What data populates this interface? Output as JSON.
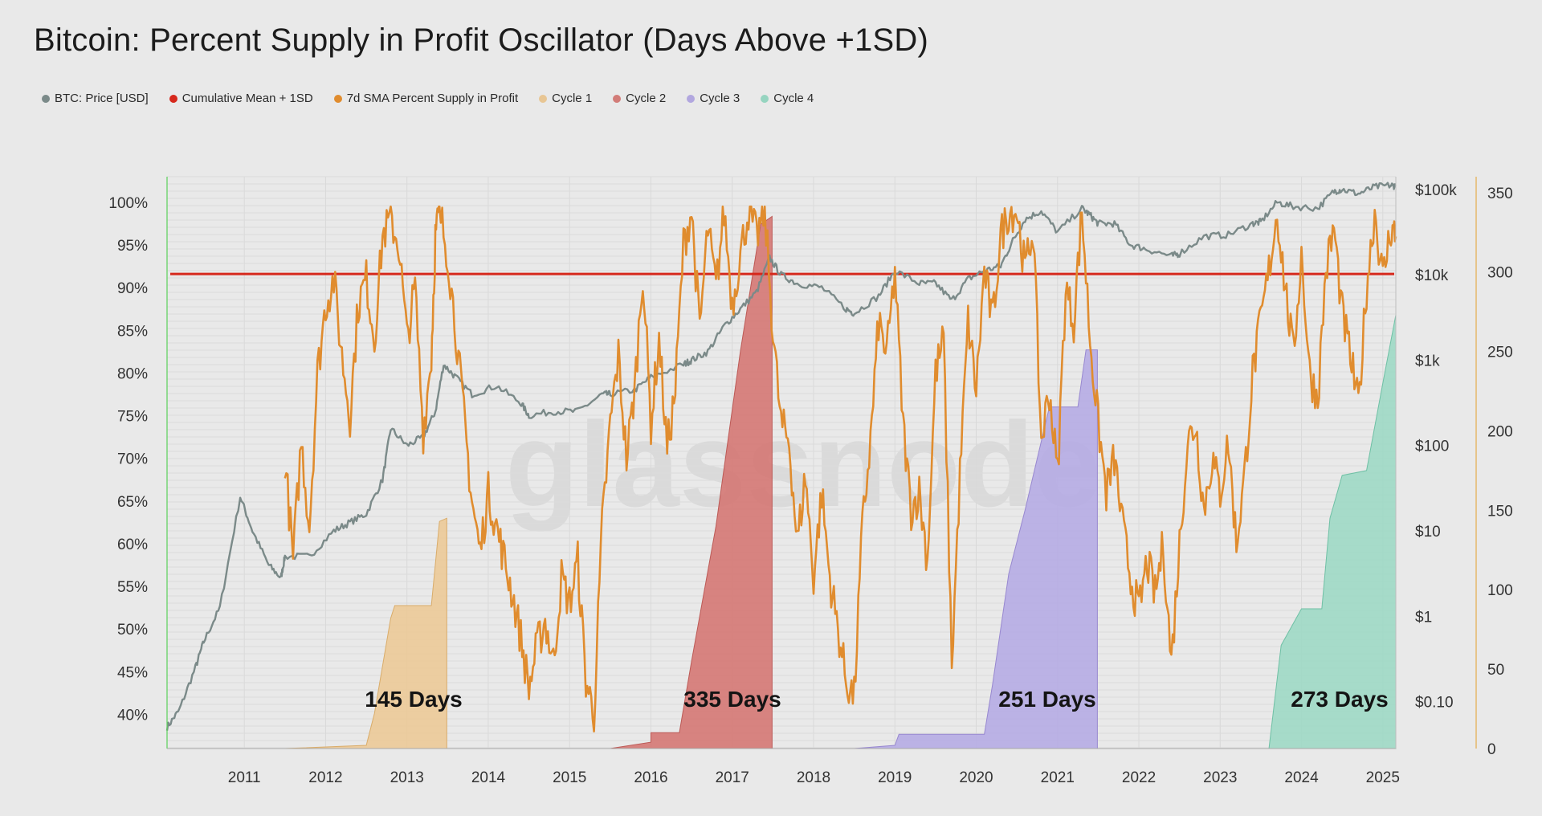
{
  "title": "Bitcoin: Percent Supply in Profit Oscillator (Days Above +1SD)",
  "watermark": "glassnode",
  "legend": [
    {
      "label": "BTC: Price [USD]",
      "color": "#7b8a89",
      "icon": "dot-icon"
    },
    {
      "label": "Cumulative Mean + 1SD",
      "color": "#d6281c",
      "icon": "dot-icon"
    },
    {
      "label": "7d SMA Percent Supply in Profit",
      "color": "#e08c2e",
      "icon": "dot-icon"
    },
    {
      "label": "Cycle 1",
      "color": "#e8c694",
      "icon": "dot-icon"
    },
    {
      "label": "Cycle 2",
      "color": "#d27c78",
      "icon": "dot-icon"
    },
    {
      "label": "Cycle 3",
      "color": "#b2a7df",
      "icon": "dot-icon"
    },
    {
      "label": "Cycle 4",
      "color": "#96d4c0",
      "icon": "dot-icon"
    }
  ],
  "chart_data": {
    "type": "line",
    "title": "Bitcoin: Percent Supply in Profit Oscillator (Days Above +1SD)",
    "x_range": [
      2010.55,
      2025.66
    ],
    "x_ticks": [
      "2011",
      "2012",
      "2013",
      "2014",
      "2015",
      "2016",
      "2017",
      "2018",
      "2019",
      "2020",
      "2021",
      "2022",
      "2023",
      "2024",
      "2025"
    ],
    "y_left": {
      "range": [
        36,
        103
      ],
      "ticks": [
        "100%",
        "95%",
        "90%",
        "85%",
        "80%",
        "75%",
        "70%",
        "65%",
        "60%",
        "55%",
        "50%",
        "45%",
        "40%"
      ]
    },
    "y_right_price": {
      "scale": "log",
      "range_log10": [
        -1.55,
        5.15
      ],
      "ticks": [
        "$100k",
        "$10k",
        "$1k",
        "$100",
        "$10",
        "$1",
        "$0.10"
      ]
    },
    "y_right_days": {
      "range": [
        0,
        360
      ],
      "ticks": [
        "350",
        "300",
        "250",
        "200",
        "150",
        "100",
        "50",
        "0"
      ]
    },
    "threshold": {
      "name": "Cumulative Mean + 1SD",
      "value": 91.6
    },
    "series": [
      {
        "name": "7d SMA Percent Supply in Profit",
        "axis": "left",
        "points": [
          [
            2012.0,
            70
          ],
          [
            2012.1,
            58
          ],
          [
            2012.2,
            72
          ],
          [
            2012.3,
            62
          ],
          [
            2012.4,
            80
          ],
          [
            2012.5,
            88
          ],
          [
            2012.6,
            91
          ],
          [
            2012.7,
            82
          ],
          [
            2012.8,
            75
          ],
          [
            2012.9,
            88
          ],
          [
            2013.0,
            91
          ],
          [
            2013.1,
            84
          ],
          [
            2013.2,
            96
          ],
          [
            2013.3,
            98
          ],
          [
            2013.4,
            95
          ],
          [
            2013.5,
            84
          ],
          [
            2013.6,
            90
          ],
          [
            2013.7,
            73
          ],
          [
            2013.8,
            82
          ],
          [
            2013.85,
            96
          ],
          [
            2013.9,
            99
          ],
          [
            2014.0,
            94
          ],
          [
            2014.1,
            85
          ],
          [
            2014.2,
            75
          ],
          [
            2014.3,
            65
          ],
          [
            2014.4,
            59
          ],
          [
            2014.5,
            66
          ],
          [
            2014.6,
            62
          ],
          [
            2014.7,
            58
          ],
          [
            2014.8,
            54
          ],
          [
            2014.9,
            49
          ],
          [
            2015.0,
            43
          ],
          [
            2015.1,
            48
          ],
          [
            2015.2,
            51
          ],
          [
            2015.3,
            46
          ],
          [
            2015.4,
            56
          ],
          [
            2015.5,
            53
          ],
          [
            2015.6,
            58
          ],
          [
            2015.7,
            44
          ],
          [
            2015.8,
            40
          ],
          [
            2015.9,
            62
          ],
          [
            2016.0,
            74
          ],
          [
            2016.1,
            82
          ],
          [
            2016.2,
            70
          ],
          [
            2016.3,
            78
          ],
          [
            2016.4,
            92
          ],
          [
            2016.5,
            74
          ],
          [
            2016.6,
            84
          ],
          [
            2016.7,
            71
          ],
          [
            2016.8,
            78
          ],
          [
            2016.9,
            95
          ],
          [
            2017.0,
            99
          ],
          [
            2017.1,
            85
          ],
          [
            2017.2,
            97
          ],
          [
            2017.3,
            90
          ],
          [
            2017.4,
            99
          ],
          [
            2017.5,
            88
          ],
          [
            2017.6,
            94
          ],
          [
            2017.7,
            99
          ],
          [
            2017.8,
            96
          ],
          [
            2017.9,
            99
          ],
          [
            2018.0,
            85
          ],
          [
            2018.1,
            74
          ],
          [
            2018.2,
            72
          ],
          [
            2018.3,
            60
          ],
          [
            2018.4,
            68
          ],
          [
            2018.5,
            56
          ],
          [
            2018.6,
            66
          ],
          [
            2018.7,
            56
          ],
          [
            2018.8,
            50
          ],
          [
            2018.9,
            44
          ],
          [
            2019.0,
            42
          ],
          [
            2019.1,
            62
          ],
          [
            2019.2,
            72
          ],
          [
            2019.3,
            86
          ],
          [
            2019.4,
            82
          ],
          [
            2019.5,
            92
          ],
          [
            2019.6,
            74
          ],
          [
            2019.7,
            64
          ],
          [
            2019.8,
            66
          ],
          [
            2019.9,
            58
          ],
          [
            2020.0,
            80
          ],
          [
            2020.1,
            84
          ],
          [
            2020.2,
            46
          ],
          [
            2020.3,
            68
          ],
          [
            2020.4,
            86
          ],
          [
            2020.5,
            78
          ],
          [
            2020.6,
            92
          ],
          [
            2020.7,
            86
          ],
          [
            2020.8,
            96
          ],
          [
            2020.9,
            99
          ],
          [
            2021.0,
            99
          ],
          [
            2021.1,
            92
          ],
          [
            2021.2,
            97
          ],
          [
            2021.3,
            72
          ],
          [
            2021.4,
            78
          ],
          [
            2021.5,
            68
          ],
          [
            2021.6,
            90
          ],
          [
            2021.7,
            86
          ],
          [
            2021.8,
            99
          ],
          [
            2021.9,
            84
          ],
          [
            2022.0,
            74
          ],
          [
            2022.1,
            66
          ],
          [
            2022.2,
            70
          ],
          [
            2022.3,
            62
          ],
          [
            2022.4,
            56
          ],
          [
            2022.5,
            52
          ],
          [
            2022.6,
            58
          ],
          [
            2022.7,
            54
          ],
          [
            2022.8,
            60
          ],
          [
            2022.9,
            46
          ],
          [
            2023.0,
            60
          ],
          [
            2023.1,
            72
          ],
          [
            2023.2,
            74
          ],
          [
            2023.3,
            64
          ],
          [
            2023.4,
            70
          ],
          [
            2023.5,
            66
          ],
          [
            2023.6,
            72
          ],
          [
            2023.7,
            60
          ],
          [
            2023.8,
            68
          ],
          [
            2023.9,
            80
          ],
          [
            2024.0,
            86
          ],
          [
            2024.1,
            92
          ],
          [
            2024.2,
            99
          ],
          [
            2024.3,
            90
          ],
          [
            2024.4,
            82
          ],
          [
            2024.5,
            94
          ],
          [
            2024.6,
            80
          ],
          [
            2024.7,
            77
          ],
          [
            2024.8,
            92
          ],
          [
            2024.9,
            97
          ],
          [
            2025.0,
            87
          ],
          [
            2025.1,
            82
          ],
          [
            2025.2,
            76
          ],
          [
            2025.3,
            90
          ],
          [
            2025.4,
            99
          ],
          [
            2025.5,
            91
          ],
          [
            2025.6,
            97
          ],
          [
            2025.66,
            96
          ]
        ]
      },
      {
        "name": "BTC: Price [USD]",
        "axis": "right_price_log10",
        "points": [
          [
            2010.55,
            -1.3
          ],
          [
            2010.7,
            -1.1
          ],
          [
            2010.9,
            -0.6
          ],
          [
            2011.0,
            -0.3
          ],
          [
            2011.2,
            0.1
          ],
          [
            2011.45,
            1.4
          ],
          [
            2011.6,
            1.0
          ],
          [
            2011.8,
            0.6
          ],
          [
            2011.95,
            0.45
          ],
          [
            2012.0,
            0.7
          ],
          [
            2012.3,
            0.7
          ],
          [
            2012.6,
            1.0
          ],
          [
            2012.8,
            1.1
          ],
          [
            2013.0,
            1.2
          ],
          [
            2013.2,
            1.6
          ],
          [
            2013.3,
            2.2
          ],
          [
            2013.5,
            2.0
          ],
          [
            2013.7,
            2.1
          ],
          [
            2013.85,
            2.4
          ],
          [
            2013.95,
            2.95
          ],
          [
            2014.1,
            2.8
          ],
          [
            2014.3,
            2.6
          ],
          [
            2014.6,
            2.7
          ],
          [
            2014.9,
            2.5
          ],
          [
            2015.0,
            2.35
          ],
          [
            2015.3,
            2.4
          ],
          [
            2015.6,
            2.4
          ],
          [
            2015.9,
            2.6
          ],
          [
            2016.0,
            2.6
          ],
          [
            2016.3,
            2.65
          ],
          [
            2016.5,
            2.8
          ],
          [
            2016.9,
            2.95
          ],
          [
            2017.0,
            3.0
          ],
          [
            2017.2,
            3.1
          ],
          [
            2017.4,
            3.4
          ],
          [
            2017.6,
            3.6
          ],
          [
            2017.8,
            3.8
          ],
          [
            2017.96,
            4.2
          ],
          [
            2018.1,
            4.0
          ],
          [
            2018.3,
            3.9
          ],
          [
            2018.6,
            3.85
          ],
          [
            2018.9,
            3.6
          ],
          [
            2019.0,
            3.55
          ],
          [
            2019.3,
            3.75
          ],
          [
            2019.5,
            4.05
          ],
          [
            2019.8,
            3.9
          ],
          [
            2020.0,
            3.9
          ],
          [
            2020.2,
            3.7
          ],
          [
            2020.4,
            3.95
          ],
          [
            2020.6,
            4.05
          ],
          [
            2020.8,
            4.1
          ],
          [
            2020.95,
            4.4
          ],
          [
            2021.1,
            4.65
          ],
          [
            2021.3,
            4.75
          ],
          [
            2021.5,
            4.5
          ],
          [
            2021.8,
            4.78
          ],
          [
            2021.9,
            4.7
          ],
          [
            2022.0,
            4.6
          ],
          [
            2022.2,
            4.6
          ],
          [
            2022.4,
            4.35
          ],
          [
            2022.6,
            4.3
          ],
          [
            2022.9,
            4.22
          ],
          [
            2023.0,
            4.25
          ],
          [
            2023.3,
            4.45
          ],
          [
            2023.6,
            4.47
          ],
          [
            2023.9,
            4.6
          ],
          [
            2024.0,
            4.62
          ],
          [
            2024.2,
            4.85
          ],
          [
            2024.4,
            4.8
          ],
          [
            2024.7,
            4.78
          ],
          [
            2024.9,
            4.98
          ],
          [
            2025.0,
            5.0
          ],
          [
            2025.2,
            4.95
          ],
          [
            2025.4,
            5.03
          ],
          [
            2025.6,
            5.05
          ],
          [
            2025.66,
            5.04
          ]
        ]
      }
    ],
    "cycles": [
      {
        "name": "Cycle 1",
        "label": "145 Days",
        "start": 2012.0,
        "end": 2013.99,
        "points": [
          [
            2012.0,
            0
          ],
          [
            2013.0,
            2
          ],
          [
            2013.1,
            22
          ],
          [
            2013.3,
            82
          ],
          [
            2013.35,
            90
          ],
          [
            2013.8,
            90
          ],
          [
            2013.9,
            143
          ],
          [
            2013.99,
            145
          ]
        ]
      },
      {
        "name": "Cycle 2",
        "label": "335 Days",
        "start": 2016.0,
        "end": 2017.99,
        "points": [
          [
            2016.0,
            0
          ],
          [
            2016.5,
            4
          ],
          [
            2016.5,
            10
          ],
          [
            2016.85,
            10
          ],
          [
            2017.0,
            55
          ],
          [
            2017.3,
            140
          ],
          [
            2017.6,
            250
          ],
          [
            2017.85,
            330
          ],
          [
            2017.99,
            335
          ]
        ]
      },
      {
        "name": "Cycle 3",
        "label": "251 Days",
        "start": 2019.0,
        "end": 2021.99,
        "points": [
          [
            2019.0,
            0
          ],
          [
            2019.5,
            2
          ],
          [
            2019.55,
            9
          ],
          [
            2020.6,
            9
          ],
          [
            2020.7,
            40
          ],
          [
            2020.9,
            110
          ],
          [
            2021.1,
            150
          ],
          [
            2021.4,
            215
          ],
          [
            2021.75,
            215
          ],
          [
            2021.85,
            251
          ],
          [
            2021.99,
            251
          ]
        ]
      },
      {
        "name": "Cycle 4",
        "label": "273 Days",
        "start": 2022.0,
        "end": 2025.66,
        "points": [
          [
            2022.0,
            0
          ],
          [
            2024.1,
            0
          ],
          [
            2024.25,
            65
          ],
          [
            2024.5,
            88
          ],
          [
            2024.75,
            88
          ],
          [
            2024.85,
            145
          ],
          [
            2025.0,
            172
          ],
          [
            2025.3,
            175
          ],
          [
            2025.5,
            230
          ],
          [
            2025.66,
            273
          ]
        ]
      }
    ]
  }
}
